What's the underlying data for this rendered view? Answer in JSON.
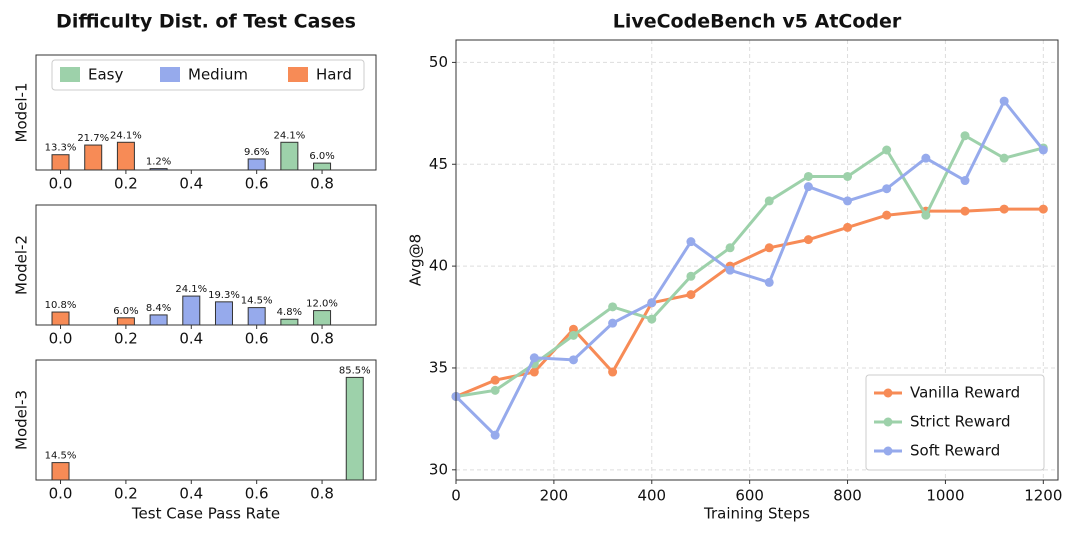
{
  "chart_data": [
    {
      "type": "bar",
      "title": "Difficulty Dist. of Test Cases",
      "ylabel": "Model-1",
      "legend": "top",
      "xlim": [
        -0.075,
        0.965
      ],
      "ylim": [
        0,
        100
      ],
      "xticks": [
        {
          "value": 0,
          "label": "0.0"
        },
        {
          "value": 0.2,
          "label": "0.2"
        },
        {
          "value": 0.4,
          "label": "0.4"
        },
        {
          "value": 0.6,
          "label": "0.6"
        },
        {
          "value": 0.8,
          "label": "0.8"
        }
      ],
      "series": [
        {
          "name": "Easy",
          "color": "#9dd1aa",
          "x": [
            0.7,
            0.8
          ],
          "values": [
            24.1,
            6.0
          ],
          "value_labels": [
            "24.1%",
            "6.0%"
          ]
        },
        {
          "name": "Medium",
          "color": "#96aaec",
          "x": [
            0.3,
            0.6
          ],
          "values": [
            1.2,
            9.6
          ],
          "value_labels": [
            "1.2%",
            "9.6%"
          ]
        },
        {
          "name": "Hard",
          "color": "#f78b56",
          "x": [
            0,
            0.1,
            0.2
          ],
          "values": [
            13.3,
            21.7,
            24.1
          ],
          "value_labels": [
            "13.3%",
            "21.7%",
            "24.1%"
          ]
        }
      ]
    },
    {
      "type": "bar",
      "ylabel": "Model-2",
      "xlim": [
        -0.075,
        0.965
      ],
      "ylim": [
        0,
        100
      ],
      "xticks": [
        {
          "value": 0,
          "label": "0.0"
        },
        {
          "value": 0.2,
          "label": "0.2"
        },
        {
          "value": 0.4,
          "label": "0.4"
        },
        {
          "value": 0.6,
          "label": "0.6"
        },
        {
          "value": 0.8,
          "label": "0.8"
        }
      ],
      "series": [
        {
          "color": "#9dd1aa",
          "x": [
            0.7,
            0.8
          ],
          "values": [
            4.8,
            12.0
          ],
          "value_labels": [
            "4.8%",
            "12.0%"
          ]
        },
        {
          "color": "#96aaec",
          "x": [
            0.3,
            0.4,
            0.5,
            0.6
          ],
          "values": [
            8.4,
            24.1,
            19.3,
            14.5
          ],
          "value_labels": [
            "8.4%",
            "24.1%",
            "19.3%",
            "14.5%"
          ]
        },
        {
          "color": "#f78b56",
          "x": [
            0,
            0.2
          ],
          "values": [
            10.8,
            6.0
          ],
          "value_labels": [
            "10.8%",
            "6.0%"
          ]
        }
      ]
    },
    {
      "type": "bar",
      "ylabel": "Model-3",
      "xlabel": "Test Case Pass Rate",
      "xlim": [
        -0.075,
        0.965
      ],
      "ylim": [
        0,
        100
      ],
      "xticks": [
        {
          "value": 0,
          "label": "0.0"
        },
        {
          "value": 0.2,
          "label": "0.2"
        },
        {
          "value": 0.4,
          "label": "0.4"
        },
        {
          "value": 0.6,
          "label": "0.6"
        },
        {
          "value": 0.8,
          "label": "0.8"
        }
      ],
      "series": [
        {
          "color": "#9dd1aa",
          "x": [
            0.9
          ],
          "values": [
            85.5
          ],
          "value_labels": [
            "85.5%"
          ]
        },
        {
          "color": "#f78b56",
          "x": [
            0
          ],
          "values": [
            14.5
          ],
          "value_labels": [
            "14.5%"
          ]
        }
      ]
    },
    {
      "type": "line",
      "title": "LiveCodeBench v5 AtCoder",
      "xlabel": "Training Steps",
      "ylabel": "Avg@8",
      "grid": true,
      "legend": "lower right",
      "xlim": [
        0,
        1230
      ],
      "ylim": [
        29.5,
        51.1
      ],
      "xticks": [
        0,
        200,
        400,
        600,
        800,
        1000,
        1200
      ],
      "yticks": [
        30,
        35,
        40,
        45,
        50
      ],
      "x": [
        0,
        80,
        160,
        240,
        320,
        400,
        480,
        560,
        640,
        720,
        800,
        880,
        960,
        1040,
        1120,
        1200
      ],
      "series": [
        {
          "name": "Vanilla Reward",
          "color": "#f78b56",
          "values": [
            33.6,
            34.4,
            34.8,
            36.9,
            34.8,
            38.2,
            38.6,
            40.0,
            40.9,
            41.3,
            41.9,
            42.5,
            42.7,
            42.7,
            42.8,
            42.8
          ]
        },
        {
          "name": "Strict Reward",
          "color": "#9dd1aa",
          "values": [
            33.6,
            33.9,
            35.2,
            36.6,
            38.0,
            37.4,
            39.5,
            40.9,
            43.2,
            44.4,
            44.4,
            45.7,
            42.5,
            46.4,
            45.3,
            45.8
          ]
        },
        {
          "name": "Soft Reward",
          "color": "#96aaec",
          "values": [
            33.6,
            31.7,
            35.5,
            35.4,
            37.2,
            38.2,
            41.2,
            39.8,
            39.2,
            43.9,
            43.2,
            43.8,
            45.3,
            44.2,
            48.1,
            45.7
          ]
        }
      ]
    }
  ]
}
